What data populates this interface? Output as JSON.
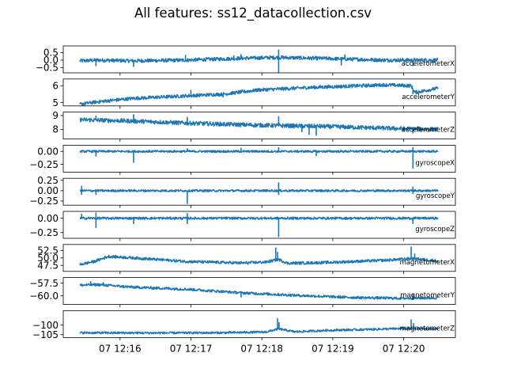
{
  "title": "All features: ss12_datacollection.csv",
  "series_color": "#1f77b4",
  "chart_data": {
    "type": "line",
    "x_axis": {
      "kind": "time",
      "range": [
        "07 12:15:26",
        "07 12:20:29"
      ],
      "ticks": [
        "07 12:16",
        "07 12:17",
        "07 12:18",
        "07 12:19",
        "07 12:20"
      ]
    },
    "panels": [
      {
        "name": "accelerometerX",
        "ylim": [
          -0.85,
          0.95
        ],
        "yticks": [
          {
            "v": 0.5,
            "label": "0.5"
          },
          {
            "v": 0.0,
            "label": "0.0"
          },
          {
            "v": -0.5,
            "label": "−0.5"
          }
        ],
        "trend": [
          [
            0,
            -0.05
          ],
          [
            0.05,
            0.0
          ],
          [
            0.15,
            -0.05
          ],
          [
            0.3,
            0.0
          ],
          [
            0.45,
            0.12
          ],
          [
            0.55,
            0.18
          ],
          [
            0.7,
            0.1
          ],
          [
            0.85,
            0.0
          ],
          [
            1,
            0.0
          ]
        ],
        "noise": 0.12,
        "spikes": [
          [
            0.045,
            -0.4
          ],
          [
            0.15,
            -0.45
          ],
          [
            0.295,
            0.35
          ],
          [
            0.43,
            0.32
          ],
          [
            0.45,
            0.4
          ],
          [
            0.555,
            0.7
          ],
          [
            0.555,
            -0.85
          ],
          [
            0.73,
            -0.35
          ],
          [
            0.74,
            0.38
          ],
          [
            0.93,
            -0.4
          ]
        ]
      },
      {
        "name": "accelerometerY",
        "ylim": [
          4.8,
          6.4
        ],
        "yticks": [
          {
            "v": 6,
            "label": "6"
          },
          {
            "v": 5,
            "label": "5"
          }
        ],
        "trend": [
          [
            0,
            4.9
          ],
          [
            0.05,
            5.05
          ],
          [
            0.15,
            5.25
          ],
          [
            0.3,
            5.4
          ],
          [
            0.4,
            5.5
          ],
          [
            0.5,
            5.75
          ],
          [
            0.65,
            5.9
          ],
          [
            0.85,
            6.05
          ],
          [
            0.925,
            6.0
          ],
          [
            0.935,
            5.6
          ],
          [
            1,
            5.85
          ]
        ],
        "noise": 0.1,
        "spikes": [
          [
            0.07,
            5.0
          ],
          [
            0.31,
            5.75
          ],
          [
            0.4,
            5.3
          ],
          [
            0.93,
            5.5
          ]
        ]
      },
      {
        "name": "accelerometerZ",
        "ylim": [
          7.3,
          9.25
        ],
        "yticks": [
          {
            "v": 9,
            "label": "9"
          },
          {
            "v": 8,
            "label": "8"
          }
        ],
        "trend": [
          [
            0,
            8.7
          ],
          [
            0.15,
            8.6
          ],
          [
            0.3,
            8.45
          ],
          [
            0.5,
            8.3
          ],
          [
            0.7,
            8.2
          ],
          [
            0.9,
            8.05
          ],
          [
            1,
            8.0
          ]
        ],
        "noise": 0.15,
        "spikes": [
          [
            0.045,
            9.0
          ],
          [
            0.15,
            9.1
          ],
          [
            0.3,
            8.9
          ],
          [
            0.555,
            8.95
          ],
          [
            0.62,
            7.8
          ],
          [
            0.64,
            7.6
          ],
          [
            0.66,
            7.55
          ],
          [
            0.93,
            7.7
          ]
        ]
      },
      {
        "name": "gyroscopeX",
        "ylim": [
          -0.4,
          0.12
        ],
        "yticks": [
          {
            "v": 0.0,
            "label": "0.00"
          },
          {
            "v": -0.25,
            "label": "−0.25"
          }
        ],
        "trend": [
          [
            0,
            0.0
          ],
          [
            1,
            0.0
          ]
        ],
        "noise": 0.02,
        "spikes": [
          [
            0.045,
            -0.1
          ],
          [
            0.15,
            -0.22
          ],
          [
            0.3,
            0.06
          ],
          [
            0.45,
            0.07
          ],
          [
            0.555,
            0.08
          ],
          [
            0.66,
            -0.09
          ],
          [
            0.93,
            -0.33
          ],
          [
            0.93,
            0.08
          ]
        ]
      },
      {
        "name": "gyroscopeY",
        "ylim": [
          -0.35,
          0.3
        ],
        "yticks": [
          {
            "v": 0.25,
            "label": "0.25"
          },
          {
            "v": 0.0,
            "label": "0.00"
          },
          {
            "v": -0.25,
            "label": "−0.25"
          }
        ],
        "trend": [
          [
            0,
            0.0
          ],
          [
            1,
            0.0
          ]
        ],
        "noise": 0.025,
        "spikes": [
          [
            0.005,
            0.12
          ],
          [
            0.005,
            -0.1
          ],
          [
            0.045,
            -0.1
          ],
          [
            0.3,
            -0.32
          ],
          [
            0.555,
            0.2
          ],
          [
            0.555,
            -0.1
          ],
          [
            0.93,
            0.1
          ],
          [
            0.93,
            -0.08
          ]
        ]
      },
      {
        "name": "gyroscopeZ",
        "ylim": [
          -0.35,
          0.12
        ],
        "yticks": [
          {
            "v": 0.0,
            "label": "0.00"
          },
          {
            "v": -0.25,
            "label": "−0.25"
          }
        ],
        "trend": [
          [
            0,
            0.0
          ],
          [
            1,
            0.0
          ]
        ],
        "noise": 0.02,
        "spikes": [
          [
            0.005,
            0.08
          ],
          [
            0.045,
            -0.17
          ],
          [
            0.045,
            0.1
          ],
          [
            0.15,
            -0.1
          ],
          [
            0.3,
            0.09
          ],
          [
            0.3,
            -0.1
          ],
          [
            0.555,
            -0.33
          ],
          [
            0.93,
            -0.1
          ]
        ]
      },
      {
        "name": "magnetometerX",
        "ylim": [
          45.5,
          54.5
        ],
        "yticks": [
          {
            "v": 52.5,
            "label": "52.5"
          },
          {
            "v": 50.0,
            "label": "50.0"
          },
          {
            "v": 47.5,
            "label": "47.5"
          }
        ],
        "trend": [
          [
            0,
            47.8
          ],
          [
            0.04,
            48.8
          ],
          [
            0.08,
            50.5
          ],
          [
            0.15,
            50.0
          ],
          [
            0.3,
            48.8
          ],
          [
            0.45,
            48.3
          ],
          [
            0.52,
            48.6
          ],
          [
            0.555,
            49.5
          ],
          [
            0.58,
            48.2
          ],
          [
            0.7,
            48.5
          ],
          [
            0.85,
            49.2
          ],
          [
            0.93,
            49.8
          ],
          [
            1,
            49.0
          ]
        ],
        "noise": 0.45,
        "spikes": [
          [
            0.547,
            53.5
          ],
          [
            0.552,
            52.0
          ],
          [
            0.925,
            53.8
          ],
          [
            0.935,
            51.5
          ]
        ]
      },
      {
        "name": "magnetometerY",
        "ylim": [
          -61.7,
          -56.4
        ],
        "yticks": [
          {
            "v": -57.5,
            "label": "−57.5"
          },
          {
            "v": -60.0,
            "label": "−60.0"
          }
        ],
        "trend": [
          [
            0,
            -57.9
          ],
          [
            0.05,
            -57.8
          ],
          [
            0.15,
            -58.3
          ],
          [
            0.3,
            -58.7
          ],
          [
            0.45,
            -59.4
          ],
          [
            0.6,
            -59.9
          ],
          [
            0.75,
            -60.3
          ],
          [
            0.9,
            -60.5
          ],
          [
            1,
            -60.4
          ]
        ],
        "noise": 0.25,
        "spikes": [
          [
            0.03,
            -57.1
          ],
          [
            0.065,
            -57.3
          ],
          [
            0.45,
            -60.3
          ],
          [
            0.93,
            -59.6
          ]
        ]
      },
      {
        "name": "magnetometerZ",
        "ylim": [
          -106.5,
          -92.5
        ],
        "yticks": [
          {
            "v": -100,
            "label": "−100"
          },
          {
            "v": -105,
            "label": "−105"
          }
        ],
        "trend": [
          [
            0,
            -104.0
          ],
          [
            0.2,
            -104.1
          ],
          [
            0.4,
            -104.0
          ],
          [
            0.52,
            -103.6
          ],
          [
            0.555,
            -102.0
          ],
          [
            0.6,
            -103.5
          ],
          [
            0.7,
            -102.7
          ],
          [
            0.8,
            -102.3
          ],
          [
            0.9,
            -101.8
          ],
          [
            1,
            -102.0
          ]
        ],
        "noise": 0.55,
        "spikes": [
          [
            0.552,
            -96.5
          ],
          [
            0.556,
            -98.5
          ],
          [
            0.925,
            -97.0
          ],
          [
            0.932,
            -99.0
          ]
        ]
      }
    ]
  }
}
